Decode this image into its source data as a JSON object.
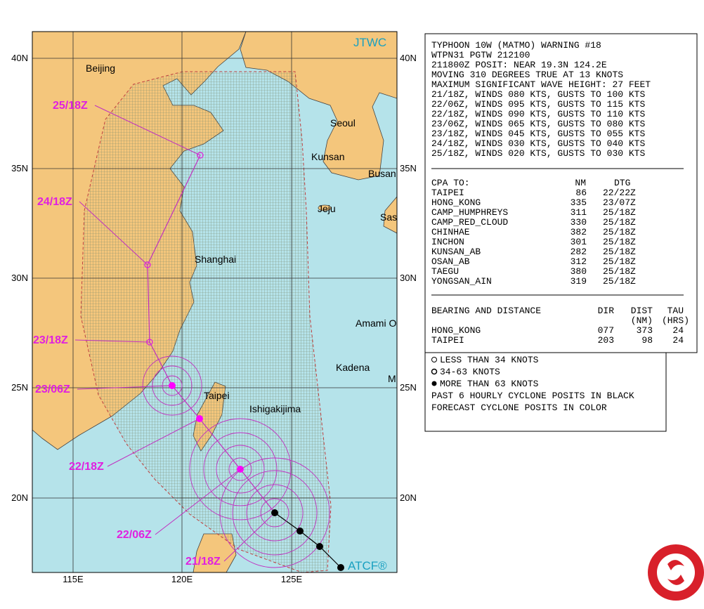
{
  "map": {
    "brand_top": "JTWC",
    "brand_bottom": "ATCF®",
    "lat_labels": [
      "40N",
      "35N",
      "30N",
      "25N",
      "20N"
    ],
    "lon_labels": [
      "115E",
      "120E",
      "125E"
    ],
    "places": [
      "Beijing",
      "Shanghai",
      "Seoul",
      "Kunsan",
      "Busan",
      "Jeju",
      "Sas",
      "Amami O",
      "Kadena",
      "Taipei",
      "Ishigakijima",
      "M"
    ],
    "forecast_labels": [
      "25/18Z",
      "24/18Z",
      "23/18Z",
      "23/06Z",
      "22/18Z",
      "22/06Z",
      "21/18Z"
    ]
  },
  "warning": {
    "lines": [
      "TYPHOON 10W (MATMO) WARNING #18",
      "WTPN31 PGTW 212100",
      "211800Z POSIT: NEAR 19.3N 124.2E",
      "MOVING 310 DEGREES TRUE AT 13 KNOTS",
      "MAXIMUM SIGNIFICANT WAVE HEIGHT: 27 FEET",
      "21/18Z, WINDS 080 KTS, GUSTS TO 100 KTS",
      "22/06Z, WINDS 095 KTS, GUSTS TO 115 KTS",
      "22/18Z, WINDS 090 KTS, GUSTS TO 110 KTS",
      "23/06Z, WINDS 065 KTS, GUSTS TO 080 KTS",
      "23/18Z, WINDS 045 KTS, GUSTS TO 055 KTS",
      "24/18Z, WINDS 030 KTS, GUSTS TO 040 KTS",
      "25/18Z, WINDS 020 KTS, GUSTS TO 030 KTS"
    ],
    "cpa": {
      "header": [
        "CPA TO:",
        "NM",
        "DTG"
      ],
      "rows": [
        [
          "TAIPEI",
          "86",
          "22/22Z"
        ],
        [
          "HONG_KONG",
          "335",
          "23/07Z"
        ],
        [
          "CAMP_HUMPHREYS",
          "311",
          "25/18Z"
        ],
        [
          "CAMP_RED_CLOUD",
          "330",
          "25/18Z"
        ],
        [
          "CHINHAE",
          "382",
          "25/18Z"
        ],
        [
          "INCHON",
          "301",
          "25/18Z"
        ],
        [
          "KUNSAN_AB",
          "282",
          "25/18Z"
        ],
        [
          "OSAN_AB",
          "312",
          "25/18Z"
        ],
        [
          "TAEGU",
          "380",
          "25/18Z"
        ],
        [
          "YONGSAN_AIN",
          "319",
          "25/18Z"
        ]
      ]
    },
    "bearing": {
      "header": [
        "BEARING AND DISTANCE",
        "DIR",
        "DIST",
        "TAU"
      ],
      "subheader": [
        "(NM)",
        "(HRS)"
      ],
      "rows": [
        [
          "HONG_KONG",
          "077",
          "373",
          "24"
        ],
        [
          "TAIPEI",
          "203",
          "98",
          "24"
        ]
      ]
    }
  },
  "legend": [
    "LESS THAN 34 KNOTS",
    "34-63 KNOTS",
    "MORE THAN 63 KNOTS",
    "PAST 6 HOURLY CYCLONE POSITS IN BLACK",
    "FORECAST CYCLONE POSITS IN COLOR"
  ]
}
